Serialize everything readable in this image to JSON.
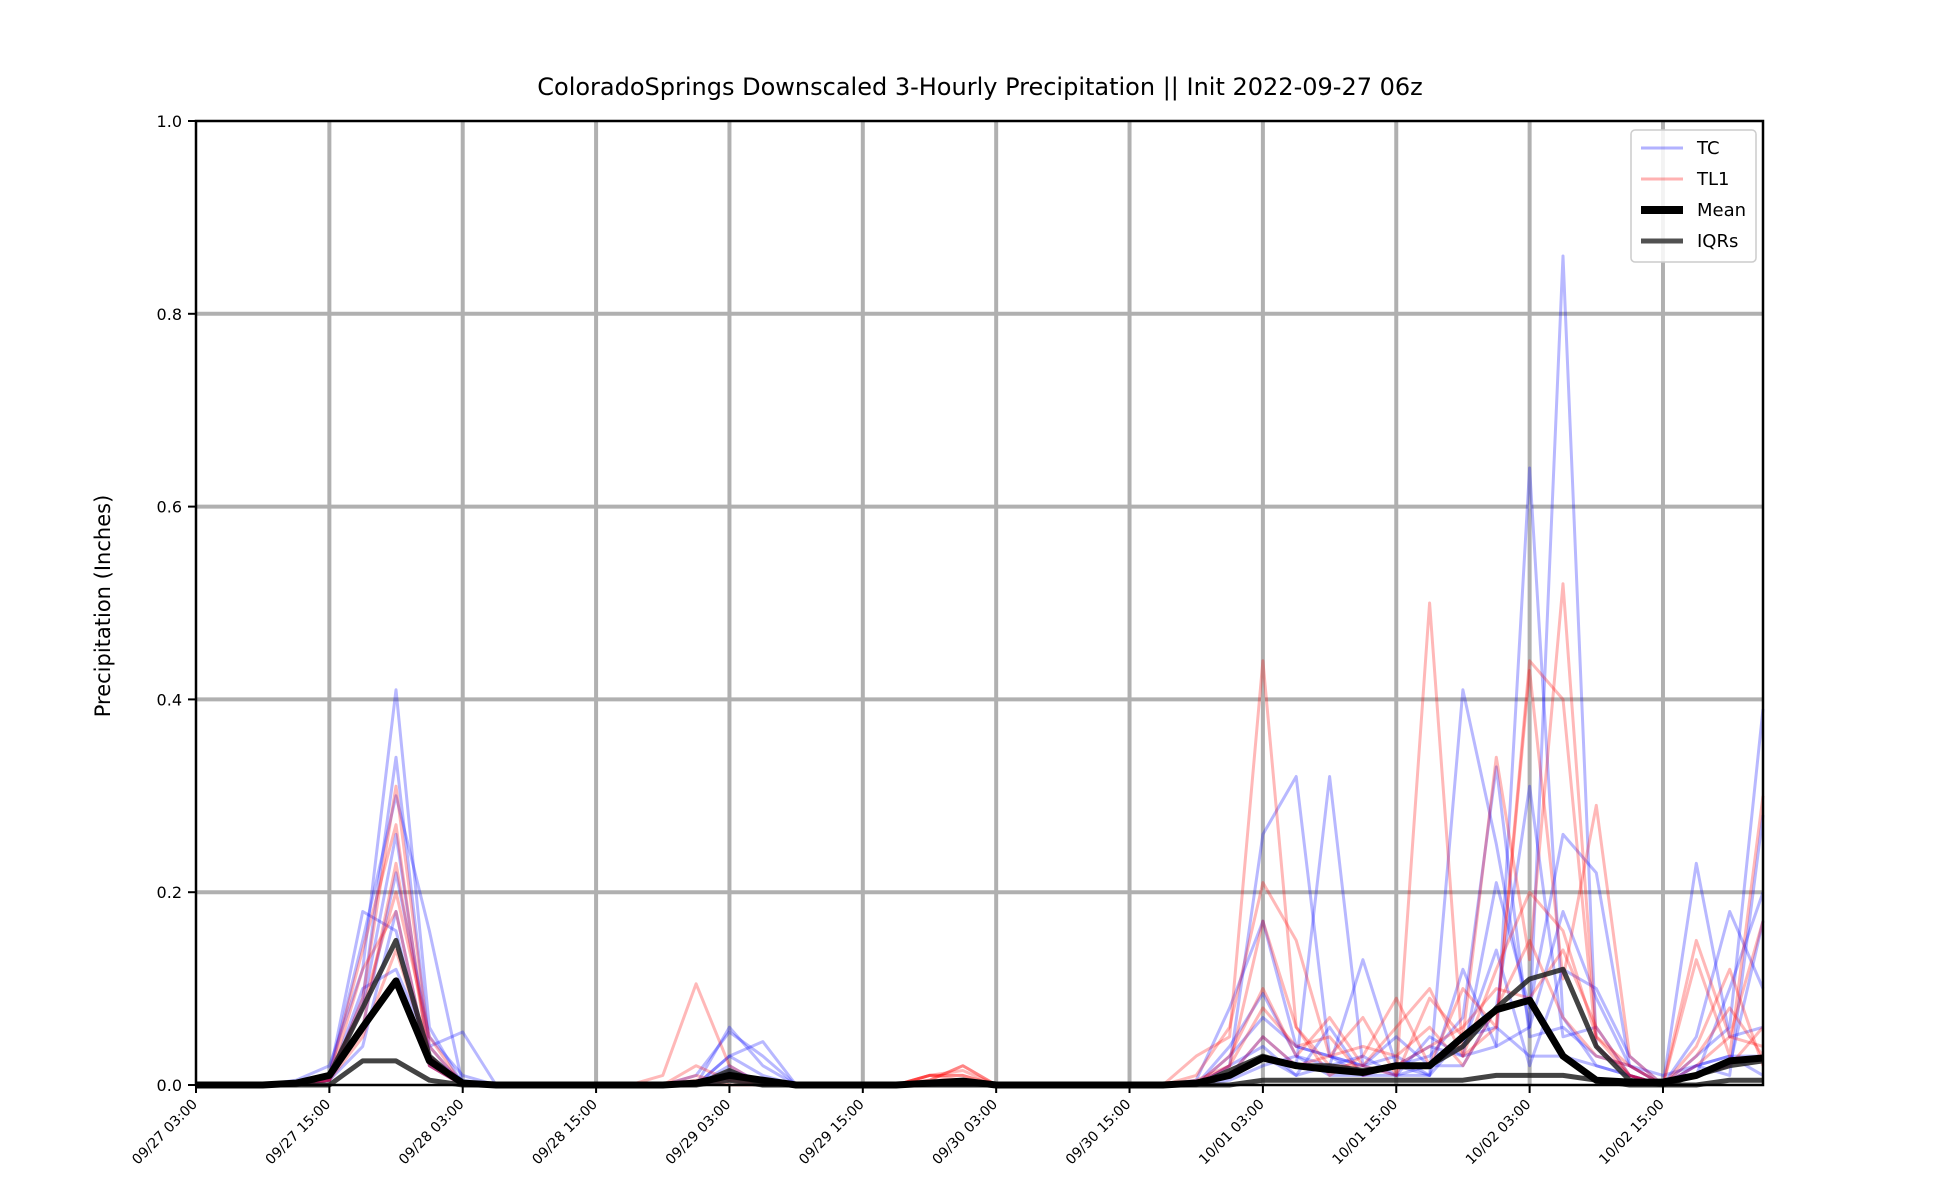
{
  "chart_data": {
    "type": "line",
    "title": "ColoradoSprings Downscaled 3-Hourly Precipitation || Init 2022-09-27 06z",
    "xlabel": "",
    "ylabel": "Precipitation (Inches)",
    "ylim": [
      0,
      1.0
    ],
    "yticks": [
      "0.0",
      "0.2",
      "0.4",
      "0.6",
      "0.8",
      "1.0"
    ],
    "xlim_hours": [
      0,
      141
    ],
    "xticks": [
      "09/27 03:00",
      "09/27 15:00",
      "09/28 03:00",
      "09/28 15:00",
      "09/29 03:00",
      "09/29 15:00",
      "09/30 03:00",
      "09/30 15:00",
      "10/01 03:00",
      "10/01 15:00",
      "10/02 03:00",
      "10/02 15:00"
    ],
    "grid": true,
    "legend_position": "top-right",
    "legend": [
      {
        "label": "TC",
        "color": "#0000ff",
        "style": "thin-translucent"
      },
      {
        "label": "TL1",
        "color": "#ff0000",
        "style": "thin-translucent"
      },
      {
        "label": "Mean",
        "color": "#000000",
        "style": "thick"
      },
      {
        "label": "IQRs",
        "color": "#333333",
        "style": "medium"
      }
    ],
    "x_hours": [
      0,
      3,
      6,
      9,
      12,
      15,
      18,
      21,
      24,
      27,
      30,
      33,
      36,
      39,
      42,
      45,
      48,
      51,
      54,
      57,
      60,
      63,
      66,
      69,
      72,
      75,
      78,
      81,
      84,
      87,
      90,
      93,
      96,
      99,
      102,
      105,
      108,
      111,
      114,
      117,
      120,
      123,
      126,
      129,
      132,
      135,
      138,
      141
    ],
    "series_tc": [
      {
        "name": "TC",
        "values": [
          0,
          0,
          0,
          0,
          0.01,
          0.18,
          0.16,
          0.02,
          0,
          0,
          0,
          0,
          0,
          0,
          0,
          0.01,
          0.055,
          0.03,
          0,
          0,
          0,
          0,
          0,
          0,
          0,
          0,
          0,
          0,
          0,
          0,
          0.005,
          0.08,
          0.17,
          0.04,
          0.03,
          0.01,
          0.02,
          0.01,
          0.12,
          0.04,
          0.06,
          0.18,
          0.09,
          0.02,
          0.01,
          0.02,
          0.03,
          0.01
        ]
      },
      {
        "name": "TC",
        "values": [
          0,
          0,
          0,
          0.005,
          0.02,
          0.12,
          0.41,
          0.06,
          0,
          0,
          0,
          0,
          0,
          0,
          0,
          0,
          0.03,
          0.045,
          0,
          0,
          0,
          0,
          0,
          0,
          0,
          0,
          0,
          0,
          0,
          0,
          0,
          0.02,
          0.26,
          0.32,
          0.03,
          0.02,
          0.01,
          0.05,
          0.03,
          0.04,
          0.64,
          0.07,
          0.02,
          0.01,
          0,
          0.23,
          0.05,
          0.06
        ]
      },
      {
        "name": "TC",
        "values": [
          0,
          0,
          0,
          0,
          0.005,
          0.09,
          0.34,
          0.04,
          0.055,
          0,
          0,
          0,
          0,
          0,
          0,
          0,
          0.01,
          0,
          0,
          0,
          0,
          0,
          0,
          0,
          0,
          0,
          0,
          0,
          0,
          0,
          0,
          0.01,
          0.05,
          0.02,
          0.32,
          0.02,
          0.03,
          0.01,
          0.41,
          0.25,
          0.06,
          0.86,
          0.04,
          0.01,
          0,
          0.02,
          0.01,
          0.28
        ]
      },
      {
        "name": "TC",
        "values": [
          0,
          0,
          0,
          0,
          0.01,
          0.15,
          0.3,
          0.16,
          0,
          0,
          0,
          0,
          0,
          0,
          0,
          0,
          0.02,
          0,
          0,
          0,
          0,
          0,
          0,
          0,
          0,
          0,
          0,
          0,
          0,
          0,
          0,
          0.04,
          0.095,
          0.03,
          0.02,
          0.13,
          0.02,
          0.04,
          0.03,
          0.21,
          0.08,
          0.26,
          0.22,
          0.02,
          0,
          0.01,
          0.02,
          0.17
        ]
      },
      {
        "name": "TC",
        "values": [
          0,
          0,
          0,
          0,
          0.005,
          0.06,
          0.22,
          0.05,
          0.01,
          0,
          0,
          0,
          0,
          0,
          0,
          0,
          0.06,
          0.02,
          0,
          0,
          0,
          0,
          0,
          0,
          0,
          0,
          0,
          0,
          0,
          0,
          0,
          0.01,
          0.03,
          0.01,
          0.06,
          0.01,
          0.02,
          0.03,
          0.07,
          0.33,
          0.05,
          0.06,
          0.03,
          0.02,
          0,
          0.03,
          0.06,
          0.39
        ]
      },
      {
        "name": "TC",
        "values": [
          0,
          0,
          0,
          0,
          0.01,
          0.08,
          0.26,
          0.03,
          0.005,
          0,
          0,
          0,
          0,
          0,
          0,
          0,
          0.03,
          0.01,
          0,
          0,
          0,
          0,
          0,
          0,
          0,
          0,
          0,
          0,
          0,
          0,
          0,
          0.03,
          0.07,
          0.04,
          0.03,
          0.02,
          0.05,
          0.02,
          0.04,
          0.14,
          0.02,
          0.12,
          0.1,
          0.03,
          0,
          0.01,
          0.1,
          0.2
        ]
      },
      {
        "name": "TC",
        "values": [
          0,
          0,
          0,
          0,
          0.005,
          0.04,
          0.18,
          0.02,
          0,
          0,
          0,
          0,
          0,
          0,
          0,
          0,
          0.015,
          0.005,
          0,
          0,
          0,
          0,
          0,
          0,
          0,
          0,
          0,
          0,
          0,
          0,
          0,
          0.005,
          0.02,
          0.03,
          0.01,
          0.01,
          0.01,
          0.02,
          0.02,
          0.08,
          0.31,
          0.05,
          0.06,
          0.01,
          0,
          0.02,
          0.03,
          0.03
        ]
      },
      {
        "name": "TC",
        "values": [
          0,
          0,
          0,
          0,
          0.005,
          0.1,
          0.12,
          0.04,
          0,
          0,
          0,
          0,
          0,
          0,
          0,
          0,
          0.005,
          0,
          0,
          0,
          0,
          0,
          0,
          0,
          0,
          0,
          0,
          0,
          0,
          0,
          0,
          0.02,
          0.04,
          0.01,
          0.02,
          0.03,
          0.01,
          0.01,
          0.05,
          0.06,
          0.03,
          0.03,
          0.02,
          0.01,
          0,
          0.05,
          0.18,
          0.1
        ]
      }
    ],
    "series_tl1": [
      {
        "name": "TL1",
        "values": [
          0,
          0,
          0,
          0,
          0.01,
          0.14,
          0.27,
          0.02,
          0,
          0,
          0,
          0,
          0,
          0,
          0.01,
          0.105,
          0.02,
          0,
          0,
          0,
          0,
          0,
          0.01,
          0.015,
          0,
          0,
          0,
          0,
          0,
          0,
          0.03,
          0.05,
          0.44,
          0.06,
          0.02,
          0.02,
          0.01,
          0.5,
          0.03,
          0.06,
          0.44,
          0.4,
          0.04,
          0.01,
          0,
          0.15,
          0.05,
          0.17
        ]
      },
      {
        "name": "TL1",
        "values": [
          0,
          0,
          0,
          0,
          0.005,
          0.09,
          0.31,
          0.04,
          0,
          0,
          0,
          0,
          0,
          0,
          0,
          0.01,
          0,
          0,
          0,
          0,
          0,
          0,
          0.005,
          0.02,
          0,
          0,
          0,
          0,
          0,
          0,
          0.01,
          0.06,
          0.21,
          0.15,
          0.03,
          0.07,
          0.01,
          0.09,
          0.05,
          0.34,
          0.13,
          0.52,
          0.05,
          0.02,
          0,
          0.13,
          0.03,
          0.3
        ]
      },
      {
        "name": "TL1",
        "values": [
          0,
          0,
          0,
          0,
          0.01,
          0.06,
          0.23,
          0.03,
          0,
          0,
          0,
          0,
          0,
          0,
          0,
          0.02,
          0.005,
          0,
          0,
          0,
          0,
          0,
          0.01,
          0.005,
          0,
          0,
          0,
          0,
          0,
          0,
          0.005,
          0.02,
          0.17,
          0.06,
          0.01,
          0.03,
          0.09,
          0.02,
          0.1,
          0.06,
          0.43,
          0.11,
          0.29,
          0.03,
          0,
          0.04,
          0.12,
          0.02
        ]
      },
      {
        "name": "TL1",
        "values": [
          0,
          0,
          0,
          0,
          0.005,
          0.12,
          0.18,
          0.02,
          0,
          0,
          0,
          0,
          0,
          0,
          0,
          0,
          0.01,
          0,
          0,
          0,
          0,
          0,
          0.01,
          0.01,
          0,
          0,
          0,
          0,
          0,
          0,
          0,
          0.03,
          0.1,
          0.03,
          0.07,
          0.02,
          0.06,
          0.1,
          0.03,
          0.12,
          0.2,
          0.16,
          0.05,
          0.01,
          0,
          0.02,
          0.05,
          0.04
        ]
      },
      {
        "name": "TL1",
        "values": [
          0,
          0,
          0,
          0,
          0.005,
          0.05,
          0.14,
          0.03,
          0,
          0,
          0,
          0,
          0,
          0,
          0,
          0,
          0.005,
          0,
          0,
          0,
          0,
          0,
          0.005,
          0.02,
          0,
          0,
          0,
          0,
          0,
          0,
          0,
          0.01,
          0.05,
          0.02,
          0.03,
          0.04,
          0.03,
          0.06,
          0.02,
          0.08,
          0.15,
          0.07,
          0.03,
          0.02,
          0,
          0.01,
          0.02,
          0.06
        ]
      },
      {
        "name": "TL1",
        "values": [
          0,
          0,
          0,
          0,
          0.01,
          0.08,
          0.2,
          0.05,
          0,
          0,
          0,
          0,
          0,
          0,
          0,
          0.005,
          0.01,
          0,
          0,
          0,
          0,
          0,
          0.01,
          0.01,
          0,
          0,
          0,
          0,
          0,
          0,
          0,
          0.02,
          0.08,
          0.04,
          0.05,
          0.01,
          0.02,
          0.04,
          0.06,
          0.1,
          0.09,
          0.14,
          0.06,
          0.01,
          0,
          0.03,
          0.08,
          0.03
        ]
      }
    ],
    "iqr_upper": [
      0,
      0,
      0,
      0,
      0.01,
      0.08,
      0.15,
      0.03,
      0,
      0,
      0,
      0,
      0,
      0,
      0,
      0,
      0.015,
      0,
      0,
      0,
      0,
      0,
      0,
      0,
      0,
      0,
      0,
      0,
      0,
      0,
      0,
      0.015,
      0.03,
      0.02,
      0.02,
      0.015,
      0.02,
      0.02,
      0.04,
      0.08,
      0.11,
      0.12,
      0.04,
      0.005,
      0,
      0.01,
      0.02,
      0.025
    ],
    "iqr_lower": [
      0,
      0,
      0,
      0,
      0,
      0.025,
      0.025,
      0.005,
      0,
      0,
      0,
      0,
      0,
      0,
      0,
      0,
      0.005,
      0,
      0,
      0,
      0,
      0,
      0,
      0,
      0,
      0,
      0,
      0,
      0,
      0,
      0,
      0,
      0.005,
      0.005,
      0.005,
      0.005,
      0.005,
      0.005,
      0.005,
      0.01,
      0.01,
      0.01,
      0.005,
      0,
      0,
      0,
      0.005,
      0.005
    ],
    "mean_values": [
      0,
      0,
      0,
      0.002,
      0.01,
      0.06,
      0.108,
      0.025,
      0.002,
      0,
      0,
      0,
      0,
      0,
      0,
      0.002,
      0.01,
      0.005,
      0,
      0,
      0,
      0,
      0.002,
      0.004,
      0,
      0,
      0,
      0,
      0,
      0,
      0.002,
      0.01,
      0.028,
      0.02,
      0.016,
      0.013,
      0.02,
      0.02,
      0.05,
      0.078,
      0.088,
      0.03,
      0.005,
      0.003,
      0.003,
      0.01,
      0.025,
      0.028
    ]
  }
}
